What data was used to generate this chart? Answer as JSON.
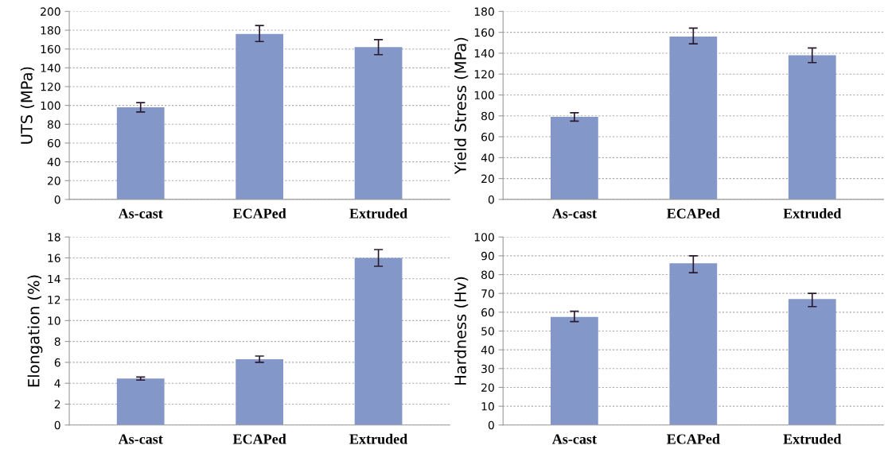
{
  "chart_data": [
    {
      "type": "bar",
      "ylabel": "UTS (MPa)",
      "categories": [
        "As-cast",
        "ECAPed",
        "Extruded"
      ],
      "values": [
        98,
        176,
        162
      ],
      "errors": [
        [
          93,
          103
        ],
        [
          168,
          185
        ],
        [
          154,
          170
        ]
      ],
      "color": "#8497c9",
      "ylim": [
        0,
        200
      ],
      "yticks": [
        0,
        20,
        40,
        60,
        80,
        100,
        120,
        140,
        160,
        180,
        200
      ],
      "grid": "y"
    },
    {
      "type": "bar",
      "ylabel": "Yield Stress (MPa)",
      "categories": [
        "As-cast",
        "ECAPed",
        "Extruded"
      ],
      "values": [
        79,
        156,
        138
      ],
      "errors": [
        [
          75,
          83
        ],
        [
          149,
          164
        ],
        [
          131,
          145
        ]
      ],
      "color": "#8497c9",
      "ylim": [
        0,
        180
      ],
      "yticks": [
        0,
        20,
        40,
        60,
        80,
        100,
        120,
        140,
        160,
        180
      ],
      "grid": "y"
    },
    {
      "type": "bar",
      "ylabel": "Elongation (%)",
      "categories": [
        "As-cast",
        "ECAPed",
        "Extruded"
      ],
      "values": [
        4.45,
        6.3,
        16.0
      ],
      "errors": [
        [
          4.3,
          4.6
        ],
        [
          6.0,
          6.6
        ],
        [
          15.2,
          16.8
        ]
      ],
      "color": "#8497c9",
      "ylim": [
        0,
        18
      ],
      "yticks": [
        0,
        2,
        4,
        6,
        8,
        10,
        12,
        14,
        16,
        18
      ],
      "grid": "y"
    },
    {
      "type": "bar",
      "ylabel": "Hardness (Hv)",
      "categories": [
        "As-cast",
        "ECAPed",
        "Extruded"
      ],
      "values": [
        57.5,
        86,
        67
      ],
      "errors": [
        [
          55,
          60.5
        ],
        [
          81,
          90
        ],
        [
          63,
          70
        ]
      ],
      "color": "#8497c9",
      "ylim": [
        0,
        100
      ],
      "yticks": [
        0,
        10,
        20,
        30,
        40,
        50,
        60,
        70,
        80,
        90,
        100
      ],
      "grid": "y"
    }
  ]
}
